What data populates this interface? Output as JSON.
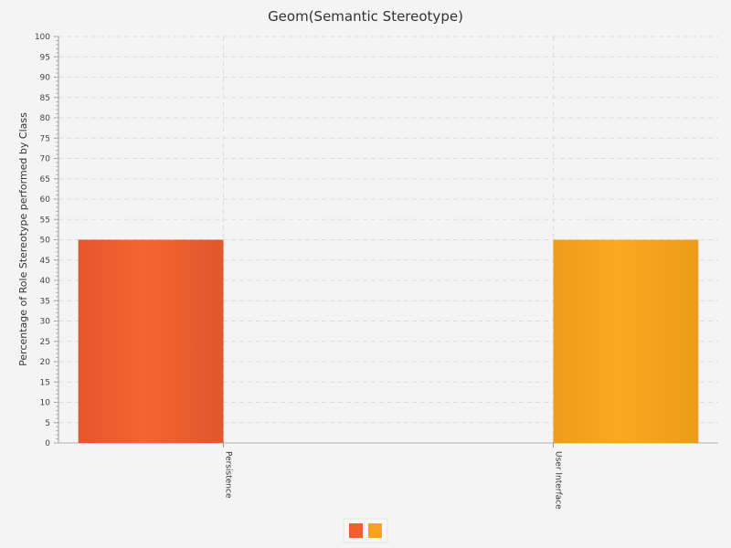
{
  "chart_data": {
    "type": "bar",
    "title": "Geom(Semantic Stereotype)",
    "ylabel": "Percentage of Role Stereotype performed by Class",
    "xlabel": "",
    "categories": [
      "Persistence",
      "User Interface"
    ],
    "series": [
      {
        "values": [
          50,
          0
        ],
        "color": "#f0602f"
      },
      {
        "values": [
          0,
          50
        ],
        "color": "#f9a21d"
      }
    ],
    "ylim": [
      0,
      100
    ],
    "ytick_step": 5,
    "grid": true,
    "legend_position": "bottom-center"
  }
}
